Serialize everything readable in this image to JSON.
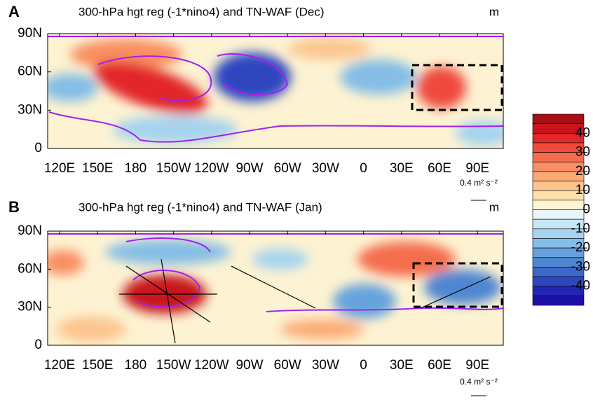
{
  "panels": [
    {
      "label": "A",
      "title": "300-hPa hgt reg (-1*nino4) and TN-WAF (Dec)",
      "unit": "m",
      "ref_vector": "0.4 m² s⁻²"
    },
    {
      "label": "B",
      "title": "300-hPa hgt reg (-1*nino4) and TN-WAF (Jan)",
      "unit": "m",
      "ref_vector": "0.4 m² s⁻²"
    }
  ],
  "x_tick_labels": [
    "120E",
    "150E",
    "180",
    "150W",
    "120W",
    "90W",
    "60W",
    "30W",
    "0",
    "30E",
    "60E",
    "90E"
  ],
  "y_tick_labels": [
    "90N",
    "60N",
    "30N",
    "0"
  ],
  "colorbar": {
    "colors": [
      "#a50f15",
      "#c8141c",
      "#e2272a",
      "#ef4a3c",
      "#f46d4d",
      "#f98e62",
      "#fbaa76",
      "#fcc58e",
      "#fde0a8",
      "#fef4d2",
      "#e8f5fb",
      "#c7e6f5",
      "#a6d3ef",
      "#84bde6",
      "#66a3dc",
      "#4f86d1",
      "#3c67c8",
      "#2e47bf",
      "#2226b5",
      "#1a10a8"
    ],
    "ticks": [
      40,
      30,
      20,
      10,
      0,
      -10,
      -20,
      -30,
      -40
    ]
  }
}
